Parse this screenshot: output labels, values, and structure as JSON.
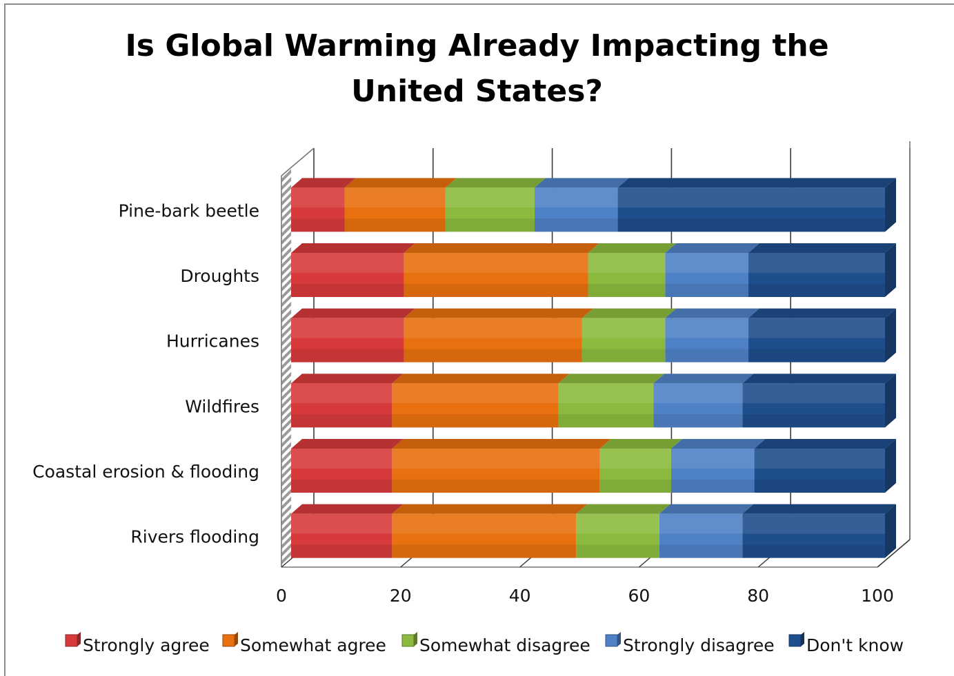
{
  "chart_data": {
    "type": "bar",
    "orientation": "horizontal",
    "stacked": true,
    "style": "3d",
    "title_lines": [
      "Is Global Warming Already Impacting the",
      "United States?"
    ],
    "categories": [
      "Pine-bark beetle",
      "Droughts",
      "Hurricanes",
      "Wildfires",
      "Coastal erosion & flooding",
      "Rivers flooding"
    ],
    "series": [
      {
        "name": "Strongly agree",
        "color": "#d63a3a",
        "values": [
          9,
          19,
          19,
          17,
          17,
          17
        ]
      },
      {
        "name": "Somewhat agree",
        "color": "#e8700e",
        "values": [
          17,
          31,
          30,
          28,
          35,
          31
        ]
      },
      {
        "name": "Somewhat disagree",
        "color": "#8cba3e",
        "values": [
          15,
          13,
          14,
          16,
          12,
          14
        ]
      },
      {
        "name": "Strongly disagree",
        "color": "#4f81c6",
        "values": [
          14,
          14,
          14,
          15,
          14,
          14
        ]
      },
      {
        "name": "Don't know",
        "color": "#1f4e8c",
        "values": [
          45,
          23,
          23,
          24,
          22,
          24
        ]
      }
    ],
    "xlim": [
      0,
      100
    ],
    "xticks": [
      "0",
      "20",
      "40",
      "60",
      "80",
      "100"
    ],
    "grid": true,
    "legend_position": "bottom"
  }
}
